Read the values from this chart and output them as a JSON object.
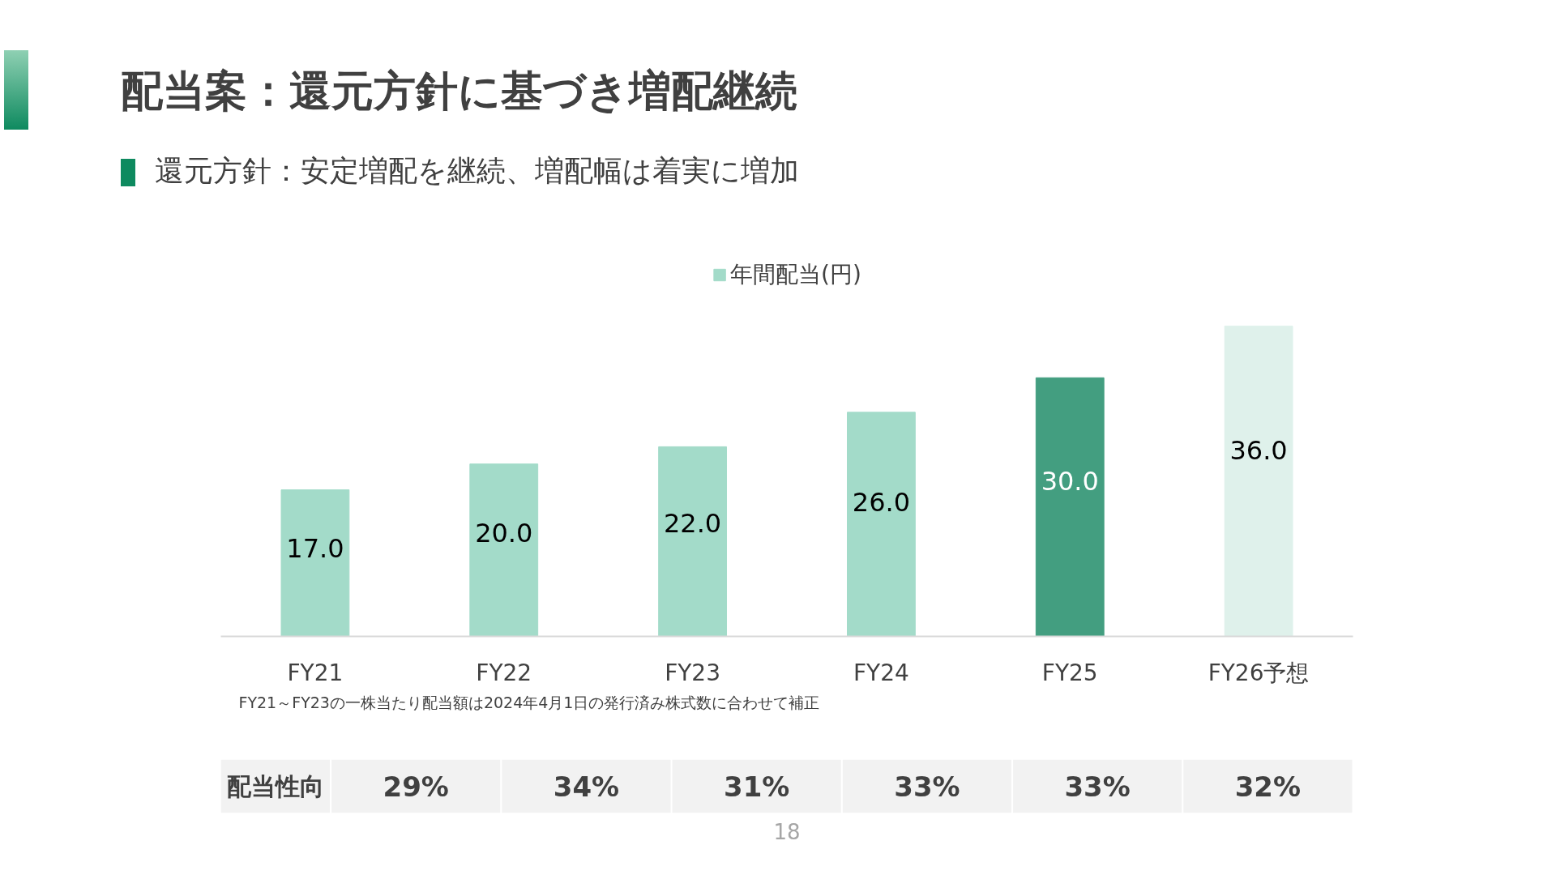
{
  "chart_data": [
    {
      "type": "bar",
      "title": "配当案：還元方針に基づき増配継続",
      "subtitle": "還元方針：安定増配を継続、増配幅は着実に増加",
      "categories": [
        "FY21",
        "FY22",
        "FY23",
        "FY24",
        "FY25",
        "FY26予想"
      ],
      "series": [
        {
          "name": "年間配当(円)",
          "color": "#a3dbc9",
          "colors": [
            null,
            null,
            null,
            null,
            "#439e80",
            "#dff1eb"
          ],
          "values": [
            17,
            20,
            22,
            26,
            30,
            36
          ],
          "value_labels": [
            "17.0",
            "20.0",
            "22.0",
            "26.0",
            "30.0",
            "36.0"
          ]
        }
      ],
      "legend": "top",
      "tick_labels": "x",
      "annotations": [
        "FY21～FY23の一株当たり配当額は2024年4月1日の発行済み株式数に合わせて補正",
        "18"
      ]
    },
    {
      "type": "other",
      "title": "配当性向",
      "annotations": [
        "29%",
        "34%",
        "31%",
        "33%",
        "33%",
        "32%"
      ]
    }
  ]
}
